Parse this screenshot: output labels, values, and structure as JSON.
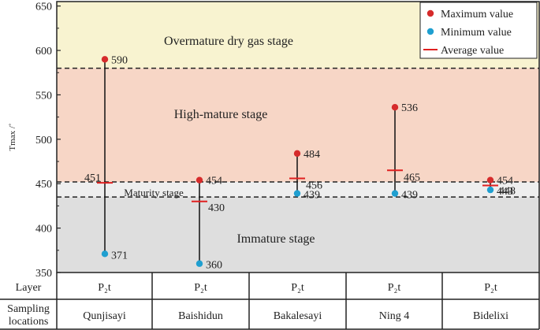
{
  "chart_data": {
    "type": "scatter",
    "ylabel": "Tmax /˚",
    "ylim": [
      350,
      655
    ],
    "yticks": [
      350,
      400,
      450,
      500,
      550,
      600,
      650
    ],
    "grid": false,
    "legend_placement": "top-right",
    "stages": [
      {
        "name": "Overmature dry gas stage",
        "from": 580,
        "to": 655,
        "color": "#f8f3d0"
      },
      {
        "name": "High-mature stage",
        "from": 452,
        "to": 580,
        "color": "#f7d6c6"
      },
      {
        "name": "Maturity stage",
        "from": 435,
        "to": 452,
        "color": "#eeeeee"
      },
      {
        "name": "Immature stage",
        "from": 350,
        "to": 435,
        "color": "#dedede"
      }
    ],
    "boundaries": [
      580,
      452,
      435
    ],
    "categories": [
      "Qunjisayi",
      "Baishidun",
      "Bakalesayi",
      "Ning 4",
      "Bidelixi"
    ],
    "layer": [
      "P₂t",
      "P₂t",
      "P₂t",
      "P₂t",
      "P₂t"
    ],
    "series": [
      {
        "name": "Maximum value",
        "values": [
          590,
          454,
          484,
          536,
          454
        ],
        "color": "#d62b2b"
      },
      {
        "name": "Minimum value",
        "values": [
          371,
          360,
          439,
          439,
          443
        ],
        "color": "#1f9fd0"
      },
      {
        "name": "Average value",
        "values": [
          451,
          430,
          456,
          465,
          448
        ],
        "color": "#e02020"
      }
    ]
  },
  "table": {
    "layer_header": "Layer",
    "sampling_header": "Sampling locations"
  }
}
